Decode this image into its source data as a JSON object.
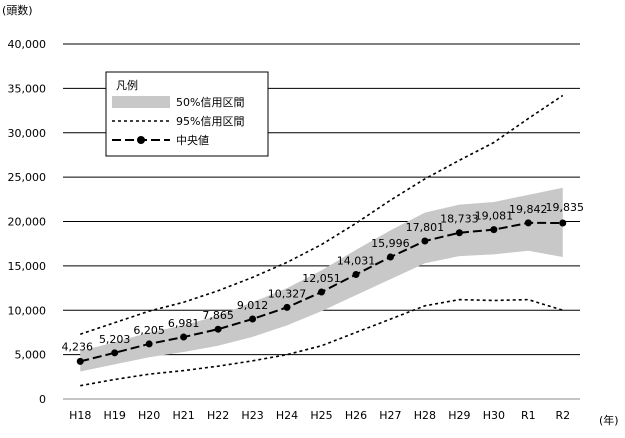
{
  "chart_data": {
    "type": "line",
    "ylabel": "(頭数)",
    "xlabel": "(年)",
    "ylim": [
      0,
      40000
    ],
    "yticks": [
      0,
      5000,
      10000,
      15000,
      20000,
      25000,
      30000,
      35000,
      40000
    ],
    "ytick_labels": [
      "0",
      "5,000",
      "10,000",
      "15,000",
      "20,000",
      "25,000",
      "30,000",
      "35,000",
      "40,000"
    ],
    "grid": true,
    "categories": [
      "H18",
      "H19",
      "H20",
      "H21",
      "H22",
      "H23",
      "H24",
      "H25",
      "H26",
      "H27",
      "H28",
      "H29",
      "H30",
      "R1",
      "R2"
    ],
    "median": {
      "name": "中央値",
      "values": [
        4236,
        5203,
        6205,
        6981,
        7865,
        9012,
        10327,
        12051,
        14031,
        15996,
        17801,
        18733,
        19081,
        19842,
        19835
      ],
      "labels": [
        "4,236",
        "5,203",
        "6,205",
        "6,981",
        "7,865",
        "9,012",
        "10,327",
        "12,051",
        "14,031",
        "15,996",
        "17,801",
        "18,733",
        "19,081",
        "19,842",
        "19,835"
      ]
    },
    "ci50": {
      "name": "50%信用区間",
      "lower": [
        3100,
        3900,
        4700,
        5300,
        6000,
        7000,
        8300,
        9900,
        11700,
        13500,
        15300,
        16100,
        16300,
        16700,
        16000
      ],
      "upper": [
        5400,
        6400,
        7500,
        8300,
        9400,
        10900,
        12500,
        14500,
        16800,
        19000,
        21000,
        21900,
        22200,
        23000,
        23800
      ]
    },
    "ci95": {
      "name": "95%信用区間",
      "lower": [
        1500,
        2200,
        2800,
        3200,
        3700,
        4300,
        5000,
        6000,
        7500,
        9000,
        10500,
        11200,
        11100,
        11200,
        10000
      ],
      "upper": [
        7300,
        8600,
        9900,
        10900,
        12200,
        13700,
        15400,
        17400,
        19800,
        22400,
        24800,
        26900,
        28900,
        31600,
        34200
      ]
    },
    "legend": {
      "title": "凡例",
      "position": "top-left",
      "entries": [
        "50%信用区間",
        "95%信用区間",
        "中央値"
      ]
    },
    "colors": {
      "band": "#c8c8c8",
      "line": "#000000",
      "grid": "#000000"
    }
  }
}
